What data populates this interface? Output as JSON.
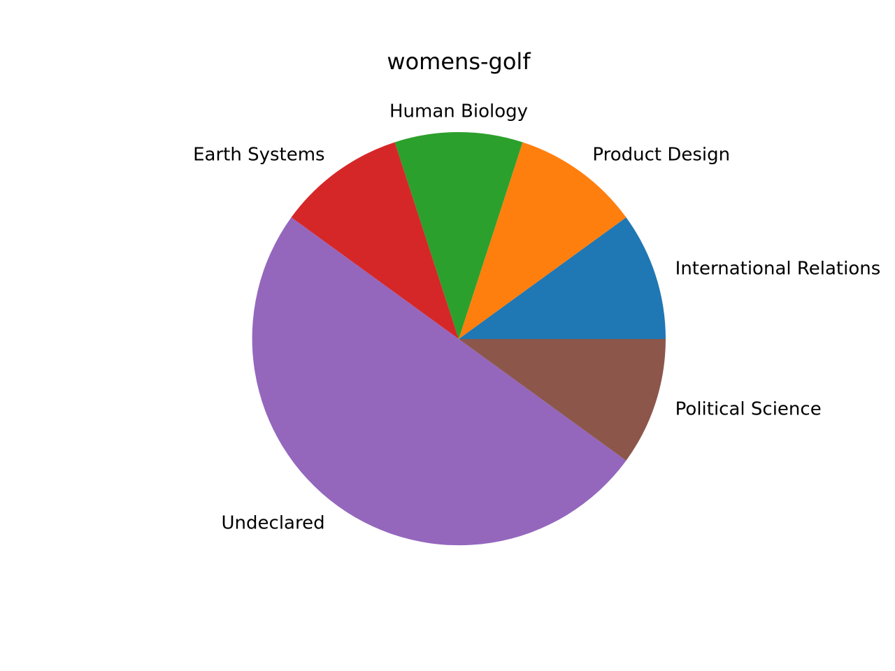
{
  "chart_data": {
    "type": "pie",
    "title": "womens-golf",
    "start_angle_deg": 0,
    "direction": "counterclockwise",
    "slices": [
      {
        "label": "International Relations",
        "value": 1,
        "color": "#1f77b4"
      },
      {
        "label": "Product Design",
        "value": 1,
        "color": "#ff7f0e"
      },
      {
        "label": "Human Biology",
        "value": 1,
        "color": "#2ca02c"
      },
      {
        "label": "Earth Systems",
        "value": 1,
        "color": "#d62728"
      },
      {
        "label": "Undeclared",
        "value": 5,
        "color": "#9467bd"
      },
      {
        "label": "Political Science",
        "value": 1,
        "color": "#8c564b"
      }
    ]
  }
}
